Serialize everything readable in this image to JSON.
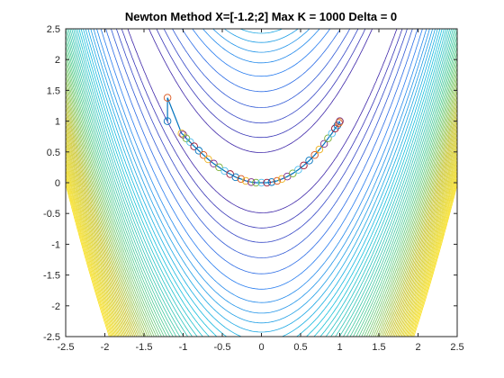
{
  "chart_data": {
    "type": "contour",
    "title": "Newton Method X=[-1.2;2] Max K = 1000 Delta = 0",
    "xlabel": "",
    "ylabel": "",
    "xlim": [
      -2.5,
      2.5
    ],
    "ylim": [
      -2.5,
      2.5
    ],
    "xticks": [
      -2.5,
      -2,
      -1.5,
      -1,
      -0.5,
      0,
      0.5,
      1,
      1.5,
      2,
      2.5
    ],
    "yticks": [
      -2.5,
      -2,
      -1.5,
      -1,
      -0.5,
      0,
      0.5,
      1,
      1.5,
      2,
      2.5
    ],
    "xtick_labels": [
      "-2.5",
      "-2",
      "-1.5",
      "-1",
      "-0.5",
      "0",
      "0.5",
      "1",
      "1.5",
      "2",
      "2.5"
    ],
    "ytick_labels": [
      "-2.5",
      "-2",
      "-1.5",
      "-1",
      "-0.5",
      "0",
      "0.5",
      "1",
      "1.5",
      "2",
      "2.5"
    ],
    "grid": false,
    "box": true,
    "contour_function": "rosenbrock",
    "contour_levels": {
      "low_levels": [
        25,
        55,
        95,
        150,
        220,
        300
      ],
      "high_start": 380,
      "high_step": 70,
      "high_end": 4000
    },
    "colormap": [
      "#3e26a8",
      "#2877f0",
      "#12bedc",
      "#4fcb8d",
      "#c3c024",
      "#f9e01c"
    ],
    "iterates": {
      "line_color": "#0072bd",
      "marker_colors": [
        "#0072bd",
        "#d95319",
        "#edb120",
        "#7e2f8e",
        "#77ac30",
        "#4dbeee",
        "#a2142f"
      ],
      "points": [
        {
          "x": -1.2,
          "y": 1.0
        },
        {
          "x": -1.2,
          "y": 1.38
        },
        {
          "x": -1.02,
          "y": 0.8
        },
        {
          "x": -1.0,
          "y": 0.78
        },
        {
          "x": -0.96,
          "y": 0.72
        },
        {
          "x": -0.91,
          "y": 0.66
        },
        {
          "x": -0.86,
          "y": 0.59
        },
        {
          "x": -0.8,
          "y": 0.52
        },
        {
          "x": -0.74,
          "y": 0.45
        },
        {
          "x": -0.68,
          "y": 0.38
        },
        {
          "x": -0.61,
          "y": 0.31
        },
        {
          "x": -0.54,
          "y": 0.25
        },
        {
          "x": -0.47,
          "y": 0.19
        },
        {
          "x": -0.4,
          "y": 0.14
        },
        {
          "x": -0.33,
          "y": 0.09
        },
        {
          "x": -0.26,
          "y": 0.06
        },
        {
          "x": -0.2,
          "y": 0.03
        },
        {
          "x": -0.13,
          "y": 0.01
        },
        {
          "x": -0.07,
          "y": 0.0
        },
        {
          "x": 0.0,
          "y": 0.0
        },
        {
          "x": 0.07,
          "y": 0.0
        },
        {
          "x": 0.13,
          "y": 0.01
        },
        {
          "x": 0.2,
          "y": 0.03
        },
        {
          "x": 0.26,
          "y": 0.06
        },
        {
          "x": 0.33,
          "y": 0.1
        },
        {
          "x": 0.4,
          "y": 0.15
        },
        {
          "x": 0.47,
          "y": 0.21
        },
        {
          "x": 0.54,
          "y": 0.28
        },
        {
          "x": 0.61,
          "y": 0.36
        },
        {
          "x": 0.68,
          "y": 0.45
        },
        {
          "x": 0.74,
          "y": 0.54
        },
        {
          "x": 0.8,
          "y": 0.63
        },
        {
          "x": 0.85,
          "y": 0.72
        },
        {
          "x": 0.9,
          "y": 0.8
        },
        {
          "x": 0.94,
          "y": 0.88
        },
        {
          "x": 0.97,
          "y": 0.93
        },
        {
          "x": 0.99,
          "y": 0.97
        },
        {
          "x": 1.0,
          "y": 0.99
        },
        {
          "x": 1.0,
          "y": 1.0
        }
      ]
    }
  }
}
